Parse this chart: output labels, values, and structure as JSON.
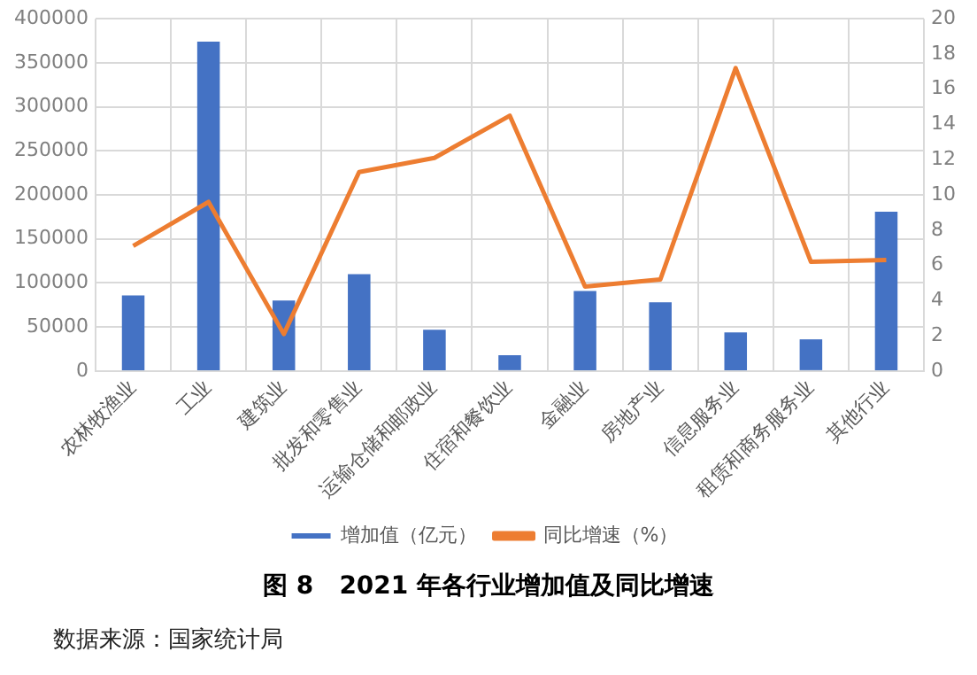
{
  "chart_data": {
    "type": "bar",
    "title": "图 8   2021 年各行业增加值及同比增速",
    "categories": [
      "农林牧渔业",
      "工业",
      "建筑业",
      "批发和零售业",
      "运输仓储和邮政业",
      "住宿和餐饮业",
      "金融业",
      "房地产业",
      "信息服务业",
      "租赁和商务服务业",
      "其他行业"
    ],
    "series": [
      {
        "name": "增加值（亿元）",
        "color": "#4472c4",
        "values": [
          86000,
          374000,
          80000,
          110000,
          47000,
          18000,
          91000,
          78000,
          44000,
          36000,
          181000
        ]
      },
      {
        "name": "同比增速（%）",
        "type": "line",
        "axis": "y2",
        "color": "#ed7d31",
        "values": [
          7.1,
          9.6,
          2.1,
          11.3,
          12.1,
          14.5,
          4.8,
          5.2,
          17.2,
          6.2,
          6.3
        ]
      }
    ],
    "ylim": [
      0,
      400000
    ],
    "yticks": [
      0,
      50000,
      100000,
      150000,
      200000,
      250000,
      300000,
      350000,
      400000
    ],
    "y2lim": [
      0,
      20
    ],
    "y2ticks": [
      0,
      2,
      4,
      6,
      8,
      10,
      12,
      14,
      16,
      18,
      20
    ],
    "grid": true,
    "legend": "bottom",
    "marker": "none",
    "annotations": [
      "数据来源：国家统计局"
    ]
  }
}
